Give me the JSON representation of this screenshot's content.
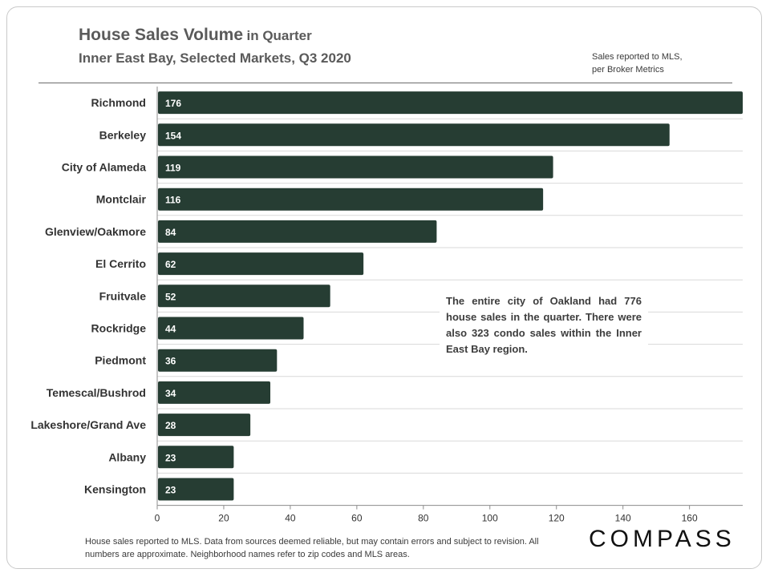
{
  "header": {
    "title_main": "House Sales Volume",
    "title_suffix": "in Quarter",
    "subtitle": "Inner East Bay, Selected Markets,  Q3 2020",
    "note_line1": "Sales reported to MLS,",
    "note_line2": "per Broker Metrics"
  },
  "annotation": "The entire city of Oakland had 776 house sales in the quarter. There were also 323 condo sales within the Inner East Bay region.",
  "footer": "House sales reported to MLS. Data from sources deemed reliable, but may contain errors and subject to revision. All numbers are approximate. Neighborhood names refer to zip codes and MLS areas.",
  "logo": "COMPASS",
  "colors": {
    "bar": "#263d33",
    "bar_label": "#ffffff",
    "grid": "#d9d9d9",
    "axis_text": "#333333",
    "category_text": "#333333"
  },
  "chart_data": {
    "type": "bar",
    "orientation": "horizontal",
    "categories": [
      "Richmond",
      "Berkeley",
      "City of Alameda",
      "Montclair",
      "Glenview/Oakmore",
      "El Cerrito",
      "Fruitvale",
      "Rockridge",
      "Piedmont",
      "Temescal/Bushrod",
      "Lakeshore/Grand Ave",
      "Albany",
      "Kensington"
    ],
    "values": [
      176,
      154,
      119,
      116,
      84,
      62,
      52,
      44,
      36,
      34,
      28,
      23,
      23
    ],
    "xlim": [
      0,
      176
    ],
    "xticks": [
      0,
      20,
      40,
      60,
      80,
      100,
      120,
      140,
      160
    ],
    "data_labels": true,
    "grid": "horizontal separators"
  }
}
